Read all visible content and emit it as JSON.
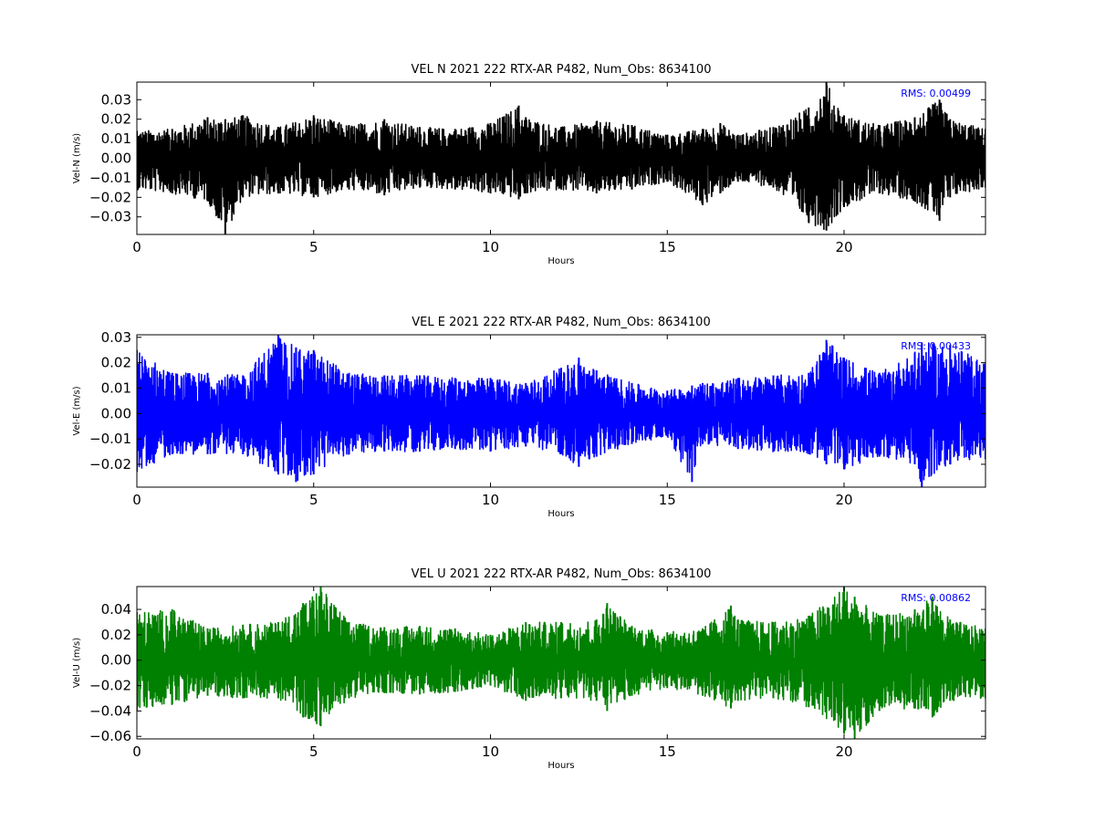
{
  "chart_data": [
    {
      "type": "line",
      "title": "VEL N 2021 222 RTX-AR  P482, Num_Obs: 8634100",
      "xlabel": "Hours",
      "ylabel": "Vel-N (m/s)",
      "xlim": [
        0,
        24
      ],
      "ylim": [
        -0.039,
        0.039
      ],
      "xticks": [
        "0",
        "5",
        "10",
        "15",
        "20"
      ],
      "yticks": [
        "−0.03",
        "−0.02",
        "−0.01",
        "0.00",
        "0.01",
        "0.02",
        "0.03"
      ],
      "grid": false,
      "color": "#000000",
      "annotation": "RMS:  0.00499",
      "annotation_color": "#0000ff",
      "series": [
        {
          "x": [
            0,
            1,
            2,
            2.5,
            3,
            4,
            5,
            6,
            7,
            8,
            9,
            10,
            10.8,
            11,
            12,
            13,
            14,
            15,
            16,
            16.5,
            17,
            18,
            19,
            19.5,
            20,
            21,
            22,
            22.7,
            23,
            24
          ],
          "upper": [
            0.014,
            0.015,
            0.021,
            0.02,
            0.022,
            0.016,
            0.022,
            0.017,
            0.02,
            0.016,
            0.015,
            0.018,
            0.027,
            0.021,
            0.016,
            0.019,
            0.017,
            0.012,
            0.015,
            0.018,
            0.012,
            0.016,
            0.026,
            0.039,
            0.022,
            0.017,
            0.021,
            0.03,
            0.02,
            0.015
          ],
          "lower": [
            -0.016,
            -0.018,
            -0.022,
            -0.039,
            -0.02,
            -0.018,
            -0.02,
            -0.016,
            -0.019,
            -0.015,
            -0.016,
            -0.018,
            -0.021,
            -0.018,
            -0.016,
            -0.018,
            -0.016,
            -0.012,
            -0.024,
            -0.018,
            -0.012,
            -0.015,
            -0.033,
            -0.037,
            -0.025,
            -0.018,
            -0.022,
            -0.032,
            -0.02,
            -0.015
          ]
        }
      ]
    },
    {
      "type": "line",
      "title": "VEL E 2021 222 RTX-AR  P482, Num_Obs: 8634100",
      "xlabel": "Hours",
      "ylabel": "Vel-E (m/s)",
      "xlim": [
        0,
        24
      ],
      "ylim": [
        -0.029,
        0.031
      ],
      "xticks": [
        "0",
        "5",
        "10",
        "15",
        "20"
      ],
      "yticks": [
        "−0.02",
        "−0.01",
        "0.00",
        "0.01",
        "0.02",
        "0.03"
      ],
      "grid": false,
      "color": "#0000ff",
      "annotation": "RMS:  0.00433",
      "annotation_color": "#0000ff",
      "series": [
        {
          "x": [
            0,
            1,
            2,
            3,
            4,
            4.5,
            5,
            6,
            7,
            8,
            9,
            10,
            11,
            12,
            12.5,
            13,
            14,
            15,
            15.7,
            16,
            17,
            18,
            19,
            19.5,
            20,
            21,
            22,
            22.2,
            23,
            24
          ],
          "upper": [
            0.025,
            0.016,
            0.016,
            0.015,
            0.031,
            0.026,
            0.025,
            0.016,
            0.015,
            0.015,
            0.014,
            0.014,
            0.012,
            0.018,
            0.022,
            0.017,
            0.012,
            0.009,
            0.011,
            0.012,
            0.014,
            0.015,
            0.016,
            0.029,
            0.022,
            0.016,
            0.024,
            0.028,
            0.027,
            0.02
          ],
          "lower": [
            -0.023,
            -0.016,
            -0.016,
            -0.016,
            -0.024,
            -0.027,
            -0.024,
            -0.016,
            -0.015,
            -0.015,
            -0.014,
            -0.015,
            -0.013,
            -0.016,
            -0.021,
            -0.017,
            -0.012,
            -0.009,
            -0.027,
            -0.012,
            -0.014,
            -0.015,
            -0.016,
            -0.02,
            -0.022,
            -0.017,
            -0.02,
            -0.029,
            -0.02,
            -0.018
          ]
        }
      ]
    },
    {
      "type": "line",
      "title": "VEL U 2021 222 RTX-AR  P482, Num_Obs: 8634100",
      "xlabel": "Hours",
      "ylabel": "Vel-U (m/s)",
      "xlim": [
        0,
        24
      ],
      "ylim": [
        -0.062,
        0.058
      ],
      "xticks": [
        "0",
        "5",
        "10",
        "15",
        "20"
      ],
      "yticks": [
        "−0.06",
        "−0.04",
        "−0.02",
        "0.00",
        "0.02",
        "0.04"
      ],
      "grid": false,
      "color": "#008000",
      "annotation": "RMS:  0.00862",
      "annotation_color": "#0000ff",
      "series": [
        {
          "x": [
            0,
            1,
            2,
            3,
            4,
            4.7,
            5.2,
            6,
            7,
            8,
            9,
            10,
            11,
            12,
            13,
            13.3,
            14,
            15,
            16,
            16.8,
            17,
            18,
            19,
            20,
            20.3,
            21,
            22,
            22.5,
            23,
            24
          ],
          "upper": [
            0.038,
            0.04,
            0.025,
            0.028,
            0.03,
            0.045,
            0.058,
            0.03,
            0.026,
            0.027,
            0.025,
            0.02,
            0.03,
            0.03,
            0.032,
            0.045,
            0.027,
            0.022,
            0.025,
            0.043,
            0.032,
            0.03,
            0.035,
            0.058,
            0.05,
            0.035,
            0.04,
            0.05,
            0.032,
            0.025
          ],
          "lower": [
            -0.04,
            -0.035,
            -0.028,
            -0.03,
            -0.03,
            -0.045,
            -0.052,
            -0.03,
            -0.026,
            -0.027,
            -0.025,
            -0.02,
            -0.032,
            -0.03,
            -0.032,
            -0.04,
            -0.028,
            -0.022,
            -0.028,
            -0.038,
            -0.032,
            -0.03,
            -0.037,
            -0.058,
            -0.062,
            -0.04,
            -0.038,
            -0.045,
            -0.032,
            -0.03
          ]
        }
      ]
    }
  ]
}
